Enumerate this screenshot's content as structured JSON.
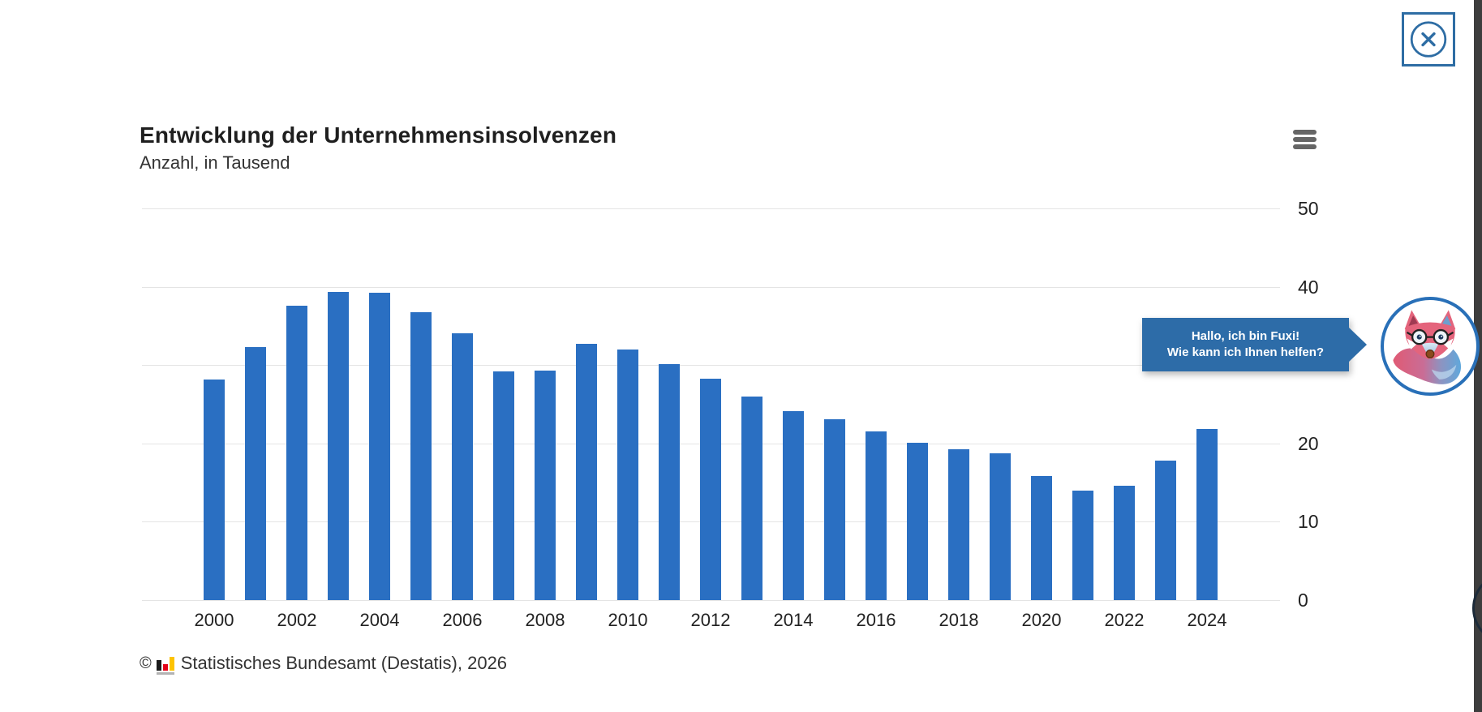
{
  "chart_data": {
    "type": "bar",
    "title": "Entwicklung der Unternehmensinsolvenzen",
    "subtitle": "Anzahl, in Tausend",
    "categories": [
      2000,
      2001,
      2002,
      2003,
      2004,
      2005,
      2006,
      2007,
      2008,
      2009,
      2010,
      2011,
      2012,
      2013,
      2014,
      2015,
      2016,
      2017,
      2018,
      2019,
      2020,
      2021,
      2022,
      2023,
      2024
    ],
    "values": [
      28.2,
      32.3,
      37.6,
      39.3,
      39.2,
      36.8,
      34.1,
      29.2,
      29.3,
      32.7,
      32.0,
      30.1,
      28.3,
      26.0,
      24.1,
      23.1,
      21.5,
      20.1,
      19.3,
      18.7,
      15.8,
      14.0,
      14.6,
      17.8,
      21.8
    ],
    "xlabel": "",
    "ylabel": "Anzahl, in Tausend",
    "ylim": [
      0,
      50
    ],
    "yticks": [
      0,
      10,
      20,
      30,
      40,
      50
    ],
    "xtick_labels": [
      "2000",
      "2002",
      "2004",
      "2006",
      "2008",
      "2010",
      "2012",
      "2014",
      "2016",
      "2018",
      "2020",
      "2022",
      "2024"
    ],
    "grid": true,
    "legend": "none",
    "y_axis_side": "right",
    "bar_color": "#2a6fc2",
    "gridline_color": "#e4e4e4"
  },
  "menu": {
    "icon": "hamburger-menu-icon",
    "color": "#666666"
  },
  "close_button": {
    "icon": "close-x-circle-icon",
    "color": "#2e6da4"
  },
  "footer": {
    "copyright": "©",
    "source_icon": "destatis-bar-chart-icon",
    "text": "Statistisches Bundesamt (Destatis), 2026",
    "icon_colors": {
      "black": "#1a1a1a",
      "red": "#e30016",
      "gold": "#fdc300"
    }
  },
  "chat_widget": {
    "bubble_line1": "Hallo, ich bin Fuxi!",
    "bubble_line2": "Wie kann ich Ihnen helfen?",
    "bubble_color": "#2d6ca8",
    "avatar_icon": "fuxi-fox-icon",
    "avatar_ring_color": "#2970b8"
  },
  "page": {
    "right_strip_color": "#3d3d3d"
  }
}
